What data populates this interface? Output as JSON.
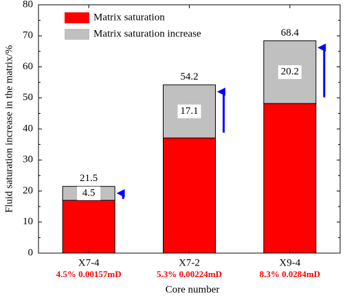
{
  "chart_data": {
    "type": "stacked_bar",
    "x_label": "Core number",
    "y_label": "Fluid saturation increase in the matrix/%",
    "categories": [
      "X7-4",
      "X7-2",
      "X9-4"
    ],
    "category_notes": [
      "4.5%  0.00157mD",
      "5.3%  0.00224mD",
      "8.3%  0.0284mD"
    ],
    "series": [
      {
        "name": "Matrix saturation",
        "color": "#ff0000",
        "values": [
          17.0,
          37.1,
          48.2
        ]
      },
      {
        "name": "Matrix saturation increase",
        "color": "#c0c0c0",
        "values": [
          4.5,
          17.1,
          20.2
        ]
      }
    ],
    "totals": [
      21.5,
      54.2,
      68.4
    ],
    "ylim": [
      0,
      80
    ],
    "yticks": [
      0,
      10,
      20,
      30,
      40,
      50,
      60,
      70,
      80
    ],
    "legend": "top-left"
  }
}
